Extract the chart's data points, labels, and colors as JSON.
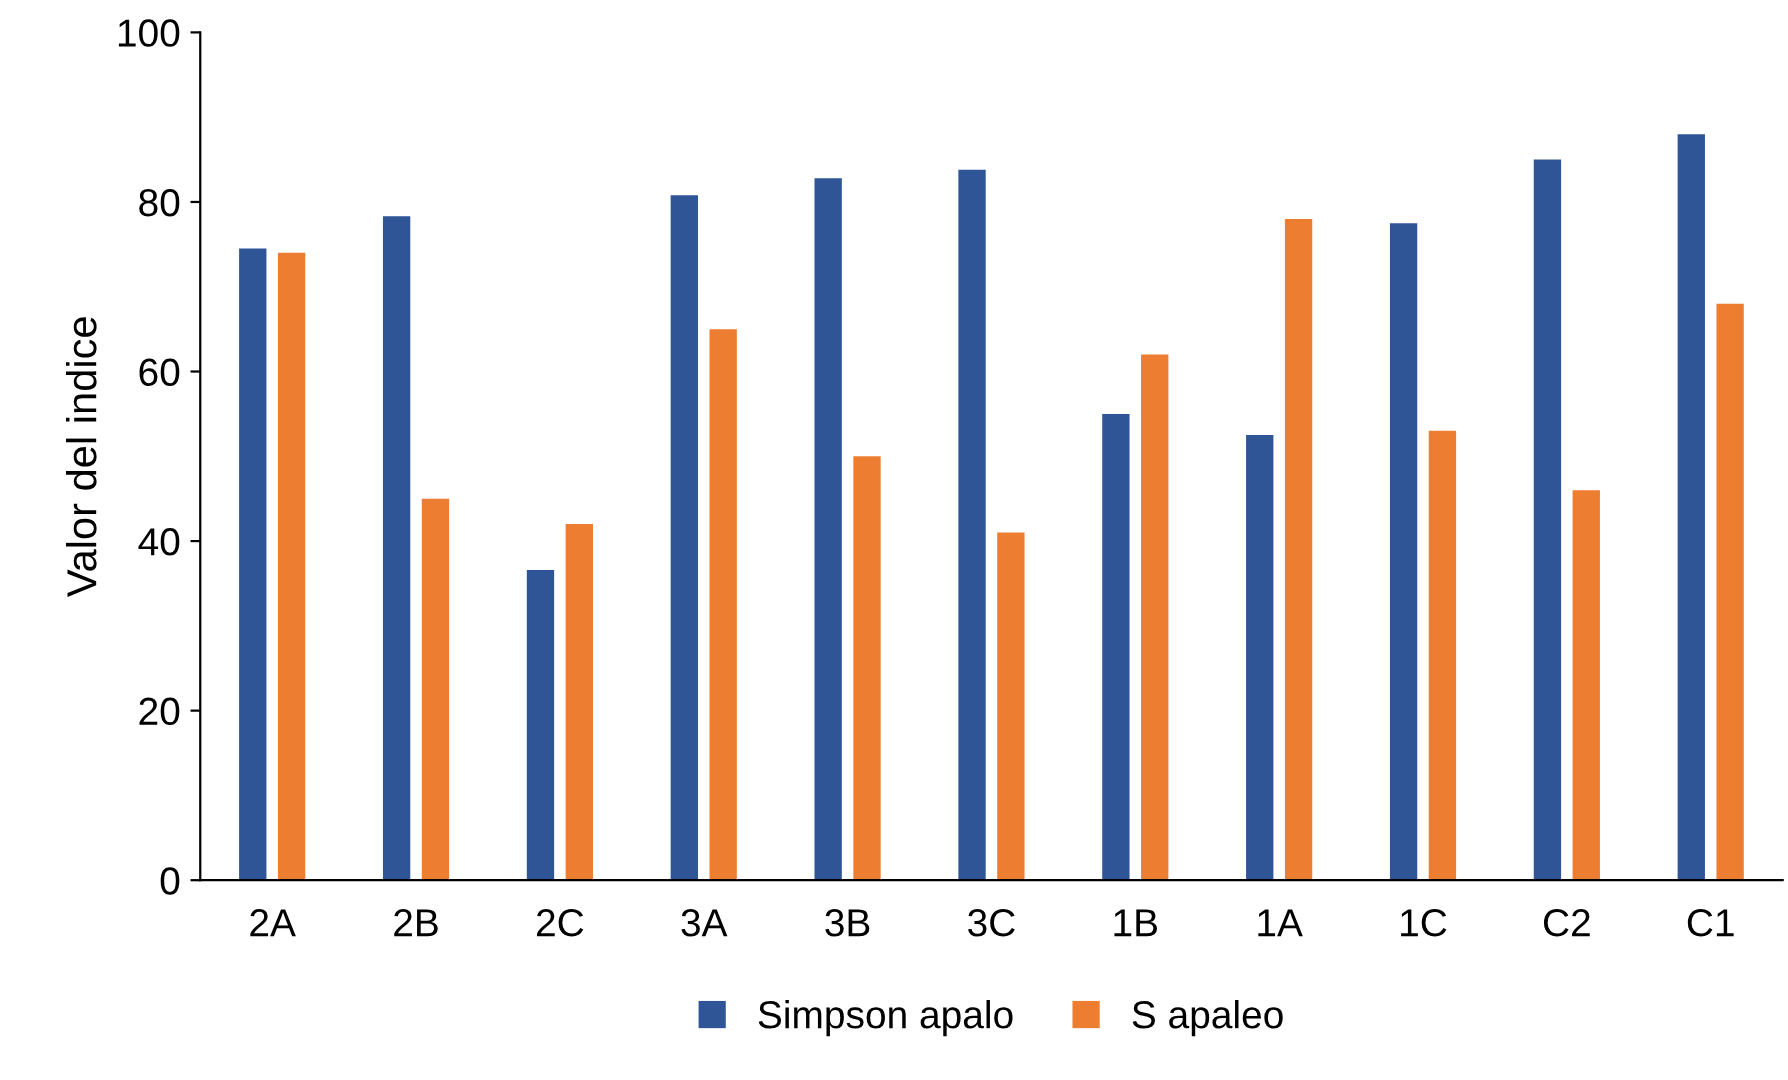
{
  "chart_data": {
    "type": "bar",
    "ylabel": "Valor del indice",
    "categories": [
      "2A",
      "2B",
      "2C",
      "3A",
      "3B",
      "3C",
      "1B",
      "1A",
      "1C",
      "C2",
      "C1"
    ],
    "series": [
      {
        "name": "Simpson apalo",
        "color": "#2f5597",
        "values": [
          74.5,
          78.3,
          36.6,
          80.8,
          82.8,
          83.8,
          55,
          52.5,
          77.5,
          85,
          88
        ]
      },
      {
        "name": "S apaleo",
        "color": "#ed7d31",
        "values": [
          74,
          45,
          42,
          65,
          50,
          41,
          62,
          78,
          53,
          46,
          68
        ]
      }
    ],
    "ylim": [
      0,
      100
    ],
    "yticks": [
      0,
      20,
      40,
      60,
      80,
      100
    ],
    "grid": false,
    "legend": "bottom"
  }
}
